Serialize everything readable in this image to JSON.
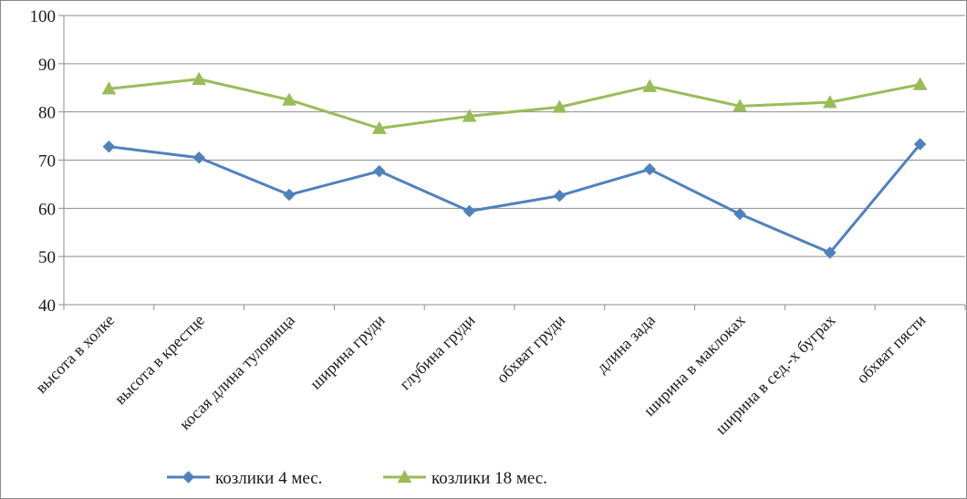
{
  "chart_data": {
    "type": "line",
    "categories": [
      "высота в холке",
      "высота в крестце",
      "косая длина туловища",
      "ширина груди",
      "глубина груди",
      "обхват груди",
      "длина зада",
      "ширина в маклоках",
      "ширина в сед.-х буграх",
      "обхват пясти"
    ],
    "series": [
      {
        "name": "козлики 4 мес.",
        "values": [
          72.8,
          70.5,
          62.8,
          67.7,
          59.4,
          62.6,
          68.1,
          58.8,
          50.8,
          73.3
        ],
        "color": "#4f81bd",
        "marker": "diamond"
      },
      {
        "name": "козлики 18 мес.",
        "values": [
          84.8,
          86.8,
          82.5,
          76.6,
          79.1,
          81.0,
          85.3,
          81.2,
          82.0,
          85.7
        ],
        "color": "#9bbb59",
        "marker": "triangle"
      }
    ],
    "ylim": [
      40,
      100
    ],
    "yticks": [
      "40",
      "50",
      "60",
      "70",
      "80",
      "90",
      "100"
    ],
    "grid": true,
    "legend": "bottom"
  }
}
